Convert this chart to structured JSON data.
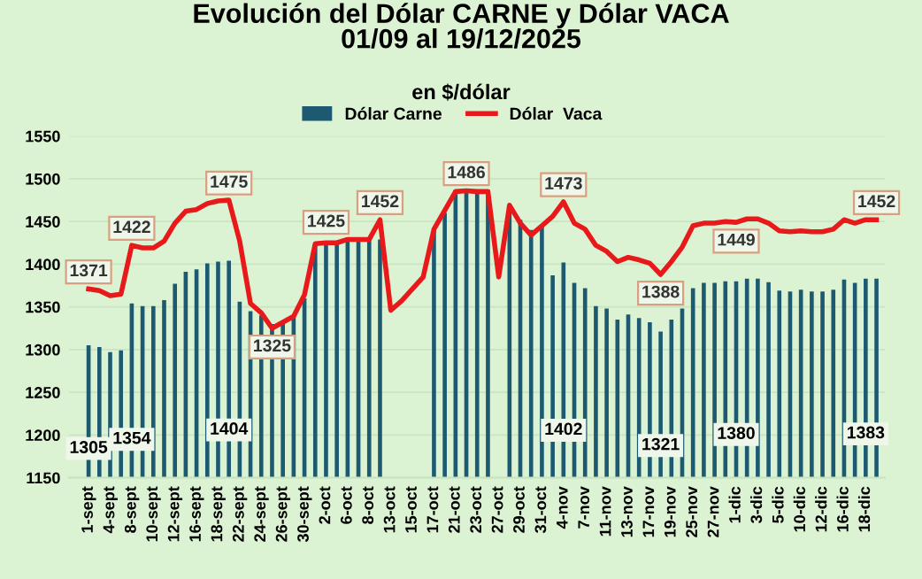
{
  "chart_data": {
    "type": "bar",
    "title": "Evolución del Dólar CARNE y Dólar VACA\n01/09 al 19/12/2025",
    "subtitle": "en $/dólar",
    "categories": [
      "1-sept",
      null,
      "4-sept",
      null,
      "8-sept",
      null,
      "10-sept",
      null,
      "12-sept",
      null,
      "16-sept",
      null,
      "18-sept",
      null,
      "22-sept",
      null,
      "24-sept",
      null,
      "26-sept",
      null,
      "30-sept",
      null,
      "2-oct",
      null,
      "6-oct",
      null,
      "8-oct",
      null,
      "13-oct",
      null,
      "15-oct",
      null,
      "17-oct",
      null,
      "21-oct",
      null,
      "23-oct",
      null,
      "27-oct",
      null,
      "29-oct",
      null,
      "31-oct",
      null,
      "4-nov",
      null,
      "7-nov",
      null,
      "11-nov",
      null,
      "13-nov",
      null,
      "17-nov",
      null,
      "19-nov",
      null,
      "25-nov",
      null,
      "27-nov",
      null,
      "1-dic",
      null,
      "3-dic",
      null,
      "5-dic",
      null,
      "10-dic",
      null,
      "12-dic",
      null,
      "16-dic",
      null,
      "18-dic",
      null
    ],
    "series": [
      {
        "name": "Dólar Carne",
        "color": "#1d5a72",
        "values": [
          1305,
          1303,
          1297,
          1299,
          1354,
          1351,
          1351,
          1358,
          1377,
          1391,
          1394,
          1401,
          1403,
          1404,
          1356,
          1345,
          1340,
          1330,
          1332,
          1340,
          1360,
          1424,
          1424,
          1425,
          1429,
          1429,
          1429,
          1429,
          null,
          null,
          null,
          null,
          1441,
          1460,
          1487,
          1487,
          1487,
          1487,
          null,
          1465,
          1452,
          1440,
          1445,
          1387,
          1402,
          1378,
          1372,
          1351,
          1348,
          1335,
          1341,
          1337,
          1332,
          1321,
          1335,
          1348,
          1372,
          1378,
          1378,
          1380,
          1380,
          1383,
          1383,
          1379,
          1369,
          1368,
          1370,
          1368,
          1368,
          1370,
          1382,
          1378,
          1383,
          1383
        ],
        "value_labels": [
          "1305",
          null,
          null,
          null,
          "1354",
          null,
          null,
          null,
          null,
          null,
          null,
          null,
          null,
          "1404",
          null,
          null,
          null,
          null,
          null,
          null,
          null,
          null,
          null,
          null,
          null,
          null,
          null,
          null,
          null,
          null,
          null,
          null,
          null,
          null,
          null,
          null,
          null,
          null,
          null,
          null,
          null,
          null,
          null,
          null,
          "1402",
          null,
          null,
          null,
          null,
          null,
          null,
          null,
          null,
          "1321",
          null,
          null,
          null,
          null,
          null,
          null,
          "1380",
          null,
          null,
          null,
          null,
          null,
          null,
          null,
          null,
          null,
          null,
          null,
          "1383",
          null
        ]
      },
      {
        "name": "Dólar  Vaca",
        "type": "line",
        "color": "#e8191a",
        "values": [
          1371,
          1369,
          1363,
          1365,
          1422,
          1419,
          1419,
          1427,
          1448,
          1462,
          1464,
          1471,
          1474,
          1475,
          1427,
          1354,
          1343,
          1325,
          1332,
          1339,
          1364,
          1424,
          1425,
          1425,
          1429,
          1429,
          1429,
          1452,
          1346,
          1357,
          1371,
          1385,
          1441,
          1463,
          1485,
          1486,
          1485,
          1485,
          1385,
          1469,
          1448,
          1434,
          1445,
          1456,
          1473,
          1448,
          1441,
          1422,
          1415,
          1403,
          1408,
          1405,
          1401,
          1388,
          1403,
          1420,
          1445,
          1448,
          1448,
          1450,
          1449,
          1453,
          1453,
          1448,
          1439,
          1438,
          1439,
          1438,
          1438,
          1441,
          1452,
          1448,
          1452,
          1452
        ],
        "value_labels": [
          "1371",
          null,
          null,
          null,
          "1422",
          null,
          null,
          null,
          null,
          null,
          null,
          null,
          null,
          "1475",
          null,
          null,
          null,
          "1325",
          null,
          null,
          null,
          null,
          "1425",
          null,
          null,
          null,
          null,
          "1452",
          null,
          null,
          null,
          null,
          null,
          null,
          null,
          "1486",
          null,
          null,
          null,
          null,
          null,
          null,
          null,
          null,
          "1473",
          null,
          null,
          null,
          null,
          null,
          null,
          null,
          null,
          "1388",
          null,
          null,
          null,
          null,
          null,
          null,
          "1449",
          null,
          null,
          null,
          null,
          null,
          null,
          null,
          null,
          null,
          null,
          null,
          null,
          "1452"
        ]
      }
    ],
    "ylim": [
      1150,
      1550
    ],
    "yticks": [
      1150,
      1200,
      1250,
      1300,
      1350,
      1400,
      1450,
      1500,
      1550
    ],
    "grid": "y",
    "legend": "top",
    "marker": "none",
    "line_style": "solid"
  }
}
